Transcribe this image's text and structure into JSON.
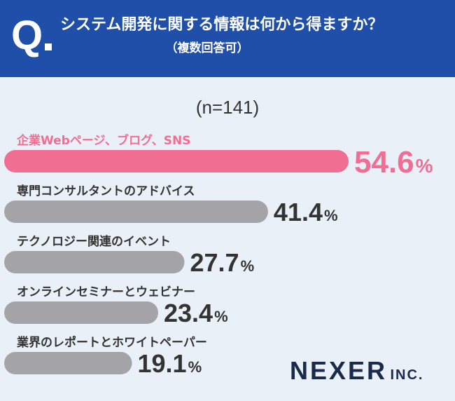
{
  "header": {
    "q": "Q",
    "title": "システム開発に関する情報は何から得ますか？",
    "subtitle": "（複数回答可）"
  },
  "sample_label": "(n=141)",
  "logo": {
    "main": "NEXER",
    "sub": "INC."
  },
  "colors": {
    "highlight": "#f06e92",
    "bar": "#a3a3a8",
    "header": "#1f4fa8",
    "background": "#e9f0f8"
  },
  "chart_data": {
    "type": "bar",
    "orientation": "horizontal",
    "categories": [
      "企業Webページ、ブログ、SNS",
      "専門コンサルタントのアドバイス",
      "テクノロジー関連のイベント",
      "オンラインセミナーとウェビナー",
      "業界のレポートとホワイトペーパー"
    ],
    "values": [
      54.6,
      41.4,
      27.7,
      23.4,
      19.1
    ],
    "value_labels": [
      "54.6",
      "41.4",
      "27.7",
      "23.4",
      "19.1"
    ],
    "unit": "%",
    "title": "システム開発に関する情報は何から得ますか？",
    "subtitle": "（複数回答可）",
    "xlabel": "",
    "ylabel": "",
    "xlim": [
      0,
      54.6
    ],
    "grid": false,
    "legend": "none",
    "highlight_index": 0
  }
}
